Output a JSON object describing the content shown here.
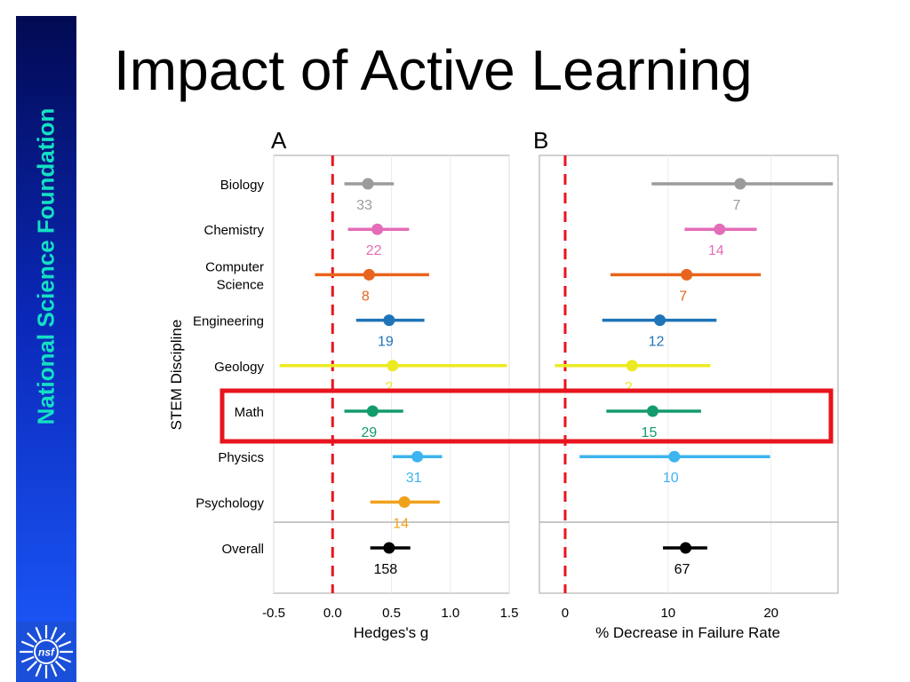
{
  "slide": {
    "title": "Impact of Active Learning",
    "sidebar_label": "National Science Foundation",
    "logo_text": "nsf"
  },
  "colors": {
    "Biology": "#9b9b9b",
    "Chemistry": "#e36db8",
    "Computer Science": "#e8641c",
    "Engineering": "#1f74b8",
    "Geology": "#ecea21",
    "Math": "#139b6c",
    "Physics": "#3cb4ef",
    "Psychology": "#f0a11c",
    "Overall": "#000000",
    "highlight": "#e8141e",
    "reference_line": "#e8141e"
  },
  "chart_data": [
    {
      "type": "forest",
      "panel_label": "A",
      "ylabel": "STEM Discipline",
      "xlabel": "Hedges's g",
      "xlim": [
        -0.5,
        1.5
      ],
      "xticks": [
        "-0.5",
        "0.0",
        "0.5",
        "1.0",
        "1.5"
      ],
      "reference_x": 0,
      "categories": [
        "Biology",
        "Chemistry",
        "Computer Science",
        "Engineering",
        "Geology",
        "Math",
        "Physics",
        "Psychology",
        "Overall"
      ],
      "category_labels": [
        [
          "Biology"
        ],
        [
          "Chemistry"
        ],
        [
          "Computer",
          "Science"
        ],
        [
          "Engineering"
        ],
        [
          "Geology"
        ],
        [
          "Math"
        ],
        [
          "Physics"
        ],
        [
          "Psychology"
        ],
        [
          "Overall"
        ]
      ],
      "estimates": [
        0.3,
        0.38,
        0.31,
        0.48,
        0.51,
        0.34,
        0.72,
        0.61,
        0.48
      ],
      "ci_low": [
        0.1,
        0.13,
        -0.15,
        0.2,
        -0.45,
        0.1,
        0.51,
        0.32,
        0.32
      ],
      "ci_high": [
        0.52,
        0.65,
        0.82,
        0.78,
        1.48,
        0.6,
        0.93,
        0.91,
        0.66
      ],
      "n": [
        "33",
        "22",
        "8",
        "19",
        "2",
        "29",
        "31",
        "14",
        "158"
      ]
    },
    {
      "type": "forest",
      "panel_label": "B",
      "xlabel": "% Decrease in Failure Rate",
      "xlim": [
        -2.5,
        26.5
      ],
      "xticks": [
        "0",
        "10",
        "20"
      ],
      "reference_x": 0,
      "categories": [
        "Biology",
        "Chemistry",
        "Computer Science",
        "Engineering",
        "Geology",
        "Math",
        "Physics",
        "Psychology",
        "Overall"
      ],
      "estimates": [
        17.0,
        15.0,
        11.8,
        9.2,
        6.5,
        8.5,
        10.6,
        null,
        11.7
      ],
      "ci_low": [
        8.4,
        11.6,
        4.4,
        3.6,
        -1.0,
        4.0,
        1.4,
        null,
        9.5
      ],
      "ci_high": [
        26.0,
        18.6,
        19.0,
        14.7,
        14.1,
        13.2,
        19.9,
        null,
        13.8
      ],
      "n": [
        "7",
        "14",
        "7",
        "12",
        "2",
        "15",
        "10",
        "",
        "67"
      ]
    }
  ]
}
